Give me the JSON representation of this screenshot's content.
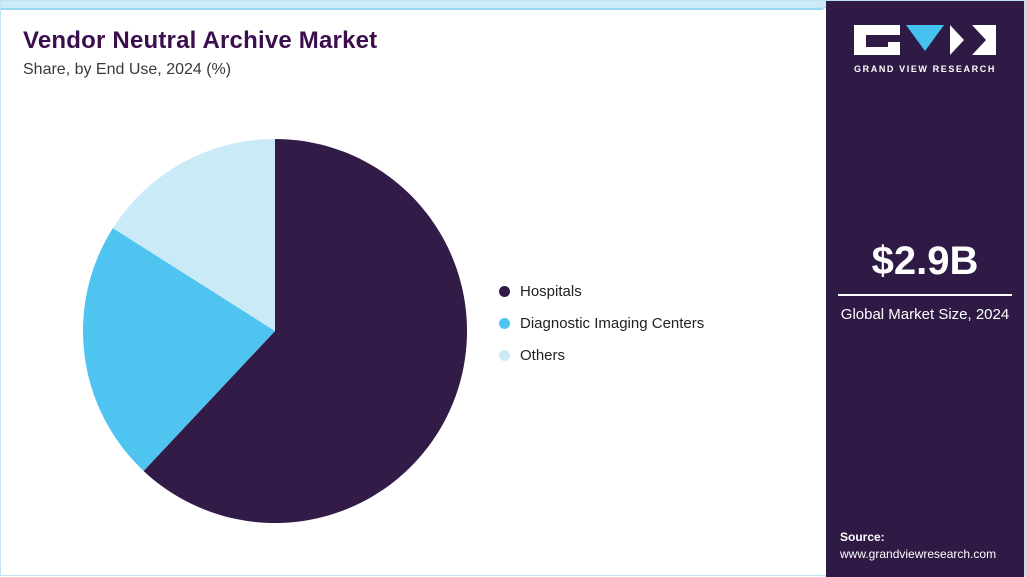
{
  "header": {
    "title": "Vendor Neutral Archive Market",
    "subtitle": "Share, by End Use, 2024 (%)"
  },
  "chart_data": {
    "type": "pie",
    "title": "Vendor Neutral Archive Market Share, by End Use, 2024 (%)",
    "labels": [
      "Hospitals",
      "Diagnostic Imaging Centers",
      "Others"
    ],
    "values": [
      62,
      22,
      16
    ],
    "unit": "%",
    "colors": [
      "#321b47",
      "#4fc4f1",
      "#cbeaf8"
    ],
    "start_angle_deg": 0,
    "direction": "clockwise",
    "legend_position": "right"
  },
  "sidebar": {
    "brand": "GRAND VIEW RESEARCH",
    "market_size_value": "$2.9B",
    "market_size_label": "Global Market Size, 2024",
    "source_label": "Source:",
    "source_url": "www.grandviewresearch.com",
    "background_color": "#2e1a45",
    "accent_color": "#45c2f0"
  }
}
